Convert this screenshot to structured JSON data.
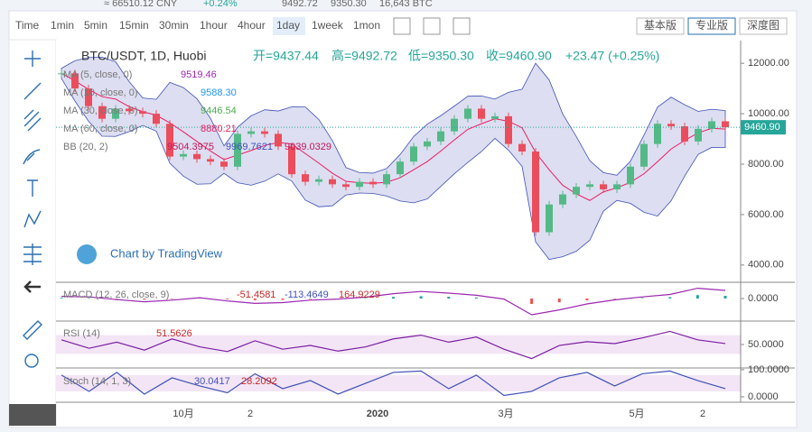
{
  "top_strip": {
    "cny": "≈ 66510.12 CNY",
    "change": "+0.24%",
    "high": "9492.72",
    "low": "9350.30",
    "volume": "16,643 BTC"
  },
  "toolbar": {
    "intervals": [
      "Time",
      "1min",
      "5min",
      "15min",
      "30min",
      "1hour",
      "4hour",
      "1day",
      "1week",
      "1mon"
    ],
    "versions": [
      "基本版",
      "专业版",
      "深度图"
    ]
  },
  "chart": {
    "symbol": "BTC/USDT, 1D, Huobi",
    "ohlc": [
      "开=9437.44",
      "高=9492.72",
      "低=9350.30",
      "收=9460.90"
    ],
    "change": "+23.47 (+0.25%)",
    "indicators": [
      {
        "name": "MA (5, close, 0)",
        "values": [
          "9519.46"
        ],
        "color": "#9c27b0"
      },
      {
        "name": "MA (10, close, 0)",
        "values": [
          "9588.30"
        ],
        "color": "#2196f3"
      },
      {
        "name": "MA (30, close, 0)",
        "values": [
          "9446.54"
        ],
        "color": "#4caf50"
      },
      {
        "name": "MA (60, close, 0)",
        "values": [
          "8880.21"
        ],
        "color": "#e91e63"
      },
      {
        "name": "BB (20, 2)",
        "values": [
          "9504.3975",
          "9969.7621",
          "9039.0329"
        ],
        "color": "#c2185b"
      }
    ],
    "watermark": "Chart by TradingView",
    "ylim": [
      3350,
      12900
    ],
    "yticks": [
      {
        "value": 12000,
        "label": "12000.00"
      },
      {
        "value": 10000,
        "label": "10000.00"
      },
      {
        "value": 8000,
        "label": "8000.00"
      },
      {
        "value": 6000,
        "label": "6000.00"
      },
      {
        "value": 4000,
        "label": "4000.00"
      }
    ],
    "last": {
      "value": 9460.9,
      "label": "9460.90"
    },
    "closes": [
      11600,
      11000,
      10300,
      9800,
      10200,
      10100,
      10000,
      9600,
      8300,
      8400,
      8200,
      8100,
      7900,
      9200,
      9300,
      9200,
      8700,
      7600,
      7300,
      7400,
      7200,
      7100,
      7300,
      7200,
      7600,
      8100,
      8700,
      8900,
      9300,
      9800,
      10200,
      9800,
      9900,
      8800,
      8500,
      5300,
      6400,
      6800,
      7100,
      7200,
      7000,
      7200,
      7900,
      8800,
      9600,
      9500,
      8900,
      9400,
      9700,
      9460.9
    ],
    "up_color": "#53b987",
    "down_color": "#eb4d5c",
    "x_labels": [
      "10月",
      "2",
      "2020",
      "3月",
      "5月",
      "2"
    ]
  },
  "panes": [
    {
      "label": "MACD (12, 26, close, 9)",
      "values": [
        "-51.4581",
        "-113.4649",
        "164.9229"
      ],
      "ylim": [
        -800,
        600
      ],
      "yticks": [
        {
          "value": 0,
          "label": "0.0000"
        }
      ],
      "series": [
        80,
        60,
        -40,
        -120,
        -60,
        30,
        -90,
        -180,
        -150,
        -60,
        -20,
        50,
        180,
        260,
        200,
        120,
        -20,
        -600,
        -420,
        -200,
        -50,
        60,
        150,
        380,
        300
      ]
    },
    {
      "label": "RSI (14)",
      "values": [
        "51.5626"
      ],
      "ylim": [
        0,
        100
      ],
      "yticks": [
        {
          "value": 50,
          "label": "50.0000"
        }
      ],
      "series": [
        60,
        42,
        55,
        38,
        62,
        45,
        35,
        58,
        40,
        48,
        36,
        45,
        62,
        70,
        55,
        66,
        40,
        20,
        48,
        56,
        52,
        64,
        78,
        60,
        52
      ]
    },
    {
      "label": "Stoch (14, 1, 3)",
      "values": [
        "30.0417",
        "28.2092"
      ],
      "ylim": [
        -20,
        103
      ],
      "yticks": [
        {
          "value": 100,
          "label": "100.0000"
        },
        {
          "value": 0,
          "label": "0.0000"
        }
      ],
      "series": [
        80,
        20,
        90,
        10,
        70,
        40,
        15,
        85,
        30,
        60,
        10,
        50,
        90,
        95,
        30,
        80,
        5,
        20,
        70,
        90,
        40,
        85,
        95,
        60,
        30
      ]
    }
  ]
}
